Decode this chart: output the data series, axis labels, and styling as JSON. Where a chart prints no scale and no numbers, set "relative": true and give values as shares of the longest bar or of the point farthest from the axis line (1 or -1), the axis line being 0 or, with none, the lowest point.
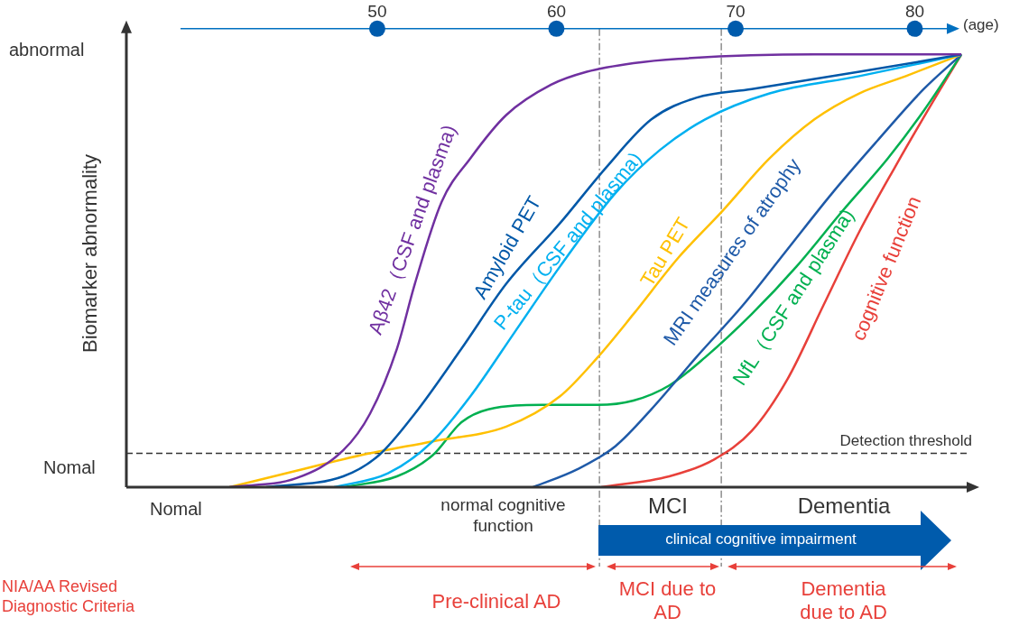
{
  "chart_data": {
    "type": "line",
    "xlabel": "(age)",
    "ylabel": "Biomarker abnormality",
    "relative": true,
    "legend": false,
    "grid": false,
    "marker": "none",
    "line_style": "solid",
    "tick_labels": "x",
    "xlim": [
      36,
      83.5
    ],
    "xticks": [
      50,
      60,
      70,
      80
    ],
    "series": [
      {
        "name": "Aβ42（CSF and plasma)",
        "color": "#7030a0",
        "x": [
          41.75,
          45.5,
          48.1,
          49.6,
          51.1,
          52.1,
          53.6,
          55.2,
          57.2,
          59.7,
          61.7,
          64.3,
          66.8,
          74.4,
          82.6
        ],
        "values": [
          0,
          0.021,
          0.085,
          0.17,
          0.32,
          0.47,
          0.66,
          0.76,
          0.86,
          0.93,
          0.96,
          0.98,
          0.99,
          1.0,
          1
        ]
      },
      {
        "name": "Amyloid PET",
        "color": "#0058a8",
        "x": [
          43.8,
          48.1,
          50.1,
          52.1,
          54.7,
          57.2,
          60.2,
          62.8,
          65.3,
          67.8,
          70.9,
          76.9,
          82.6
        ],
        "values": [
          0,
          0.025,
          0.074,
          0.17,
          0.32,
          0.47,
          0.61,
          0.74,
          0.85,
          0.9,
          0.92,
          0.96,
          1
        ]
      },
      {
        "name": "P-tau（CSF and plasma)",
        "color": "#00b0f0",
        "x": [
          47.6,
          50.6,
          53.1,
          55.2,
          57.7,
          60.2,
          63.3,
          65.8,
          68.3,
          71.9,
          76.9,
          82.6
        ],
        "values": [
          0,
          0.032,
          0.106,
          0.21,
          0.36,
          0.51,
          0.68,
          0.78,
          0.85,
          0.91,
          0.95,
          1
        ]
      },
      {
        "name": "Tau PET",
        "color": "#ffc000",
        "x": [
          41.75,
          45.5,
          49.1,
          53.1,
          57.2,
          60.2,
          62.3,
          64.3,
          66.8,
          69.3,
          71.9,
          74.4,
          76.9,
          79.5,
          82.6
        ],
        "values": [
          0,
          0.038,
          0.074,
          0.106,
          0.14,
          0.21,
          0.3,
          0.4,
          0.53,
          0.64,
          0.76,
          0.85,
          0.91,
          0.95,
          1
        ]
      },
      {
        "name": "MRI measures of atrophy",
        "color": "#1f5aa8",
        "x": [
          58.7,
          61.2,
          63.3,
          65.3,
          67.8,
          70.4,
          72.9,
          75.4,
          77.9,
          80.5,
          82.6
        ],
        "values": [
          0,
          0.042,
          0.095,
          0.18,
          0.3,
          0.42,
          0.55,
          0.68,
          0.8,
          0.92,
          1
        ]
      },
      {
        "name": "NfL（CSF and plasma)",
        "color": "#00b050",
        "x": [
          48.1,
          51.1,
          53.1,
          54.7,
          56.2,
          59.2,
          62.3,
          64.3,
          66.3,
          68.3,
          70.9,
          73.4,
          76.0,
          78.5,
          80.5,
          82.6
        ],
        "values": [
          0,
          0.025,
          0.074,
          0.15,
          0.18,
          0.19,
          0.19,
          0.2,
          0.235,
          0.3,
          0.4,
          0.51,
          0.64,
          0.76,
          0.87,
          1
        ]
      },
      {
        "name": "cognitive function",
        "color": "#e8403a",
        "x": [
          62.5,
          66.3,
          68.8,
          70.9,
          72.9,
          74.9,
          76.9,
          78.9,
          81.0,
          82.6
        ],
        "values": [
          0,
          0.025,
          0.064,
          0.13,
          0.25,
          0.42,
          0.59,
          0.74,
          0.89,
          1
        ]
      }
    ],
    "ref_lines": [
      {
        "axis": "y",
        "value": 0.078,
        "label": "Detection threshold",
        "color": "#333333",
        "line_style": "dashed"
      },
      {
        "axis": "x",
        "value": 62.4,
        "color": "#555555",
        "line_style": "dashed"
      },
      {
        "axis": "x",
        "value": 69.2,
        "color": "#555555",
        "line_style": "dashed"
      }
    ],
    "annotations": [
      "abnormal",
      "Nomal",
      "Nomal",
      "normal cognitive function",
      "MCI",
      "Dementia",
      "clinical cognitive impairment",
      "NIA/AA Revised Diagnostic Criteria",
      "Pre-clinical AD",
      "MCI due to AD",
      "Dementia due to AD"
    ]
  }
}
